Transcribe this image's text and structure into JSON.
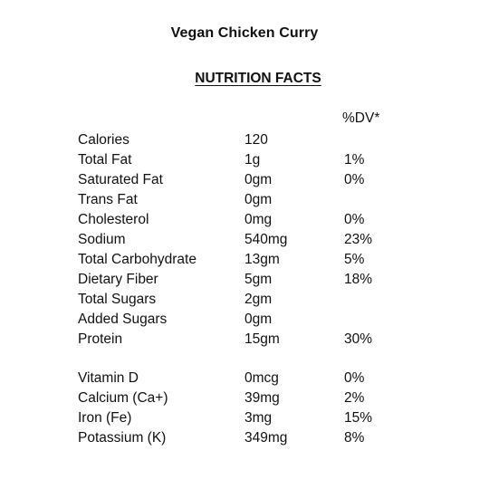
{
  "title": "Vegan Chicken Curry",
  "heading": "NUTRITION FACTS",
  "dv_header": "%DV*",
  "rows": [
    {
      "name": "Calories",
      "amount": "120",
      "dv": ""
    },
    {
      "name": "Total Fat",
      "amount": "1g",
      "dv": "1%"
    },
    {
      "name": "Saturated Fat",
      "amount": "0gm",
      "dv": "0%"
    },
    {
      "name": "Trans Fat",
      "amount": "0gm",
      "dv": ""
    },
    {
      "name": "Cholesterol",
      "amount": "0mg",
      "dv": "0%"
    },
    {
      "name": "Sodium",
      "amount": "540mg",
      "dv": "23%"
    },
    {
      "name": "Total Carbohydrate",
      "amount": "13gm",
      "dv": "5%"
    },
    {
      "name": "Dietary Fiber",
      "amount": "5gm",
      "dv": "18%"
    },
    {
      "name": "Total Sugars",
      "amount": "2gm",
      "dv": ""
    },
    {
      "name": "Added Sugars",
      "amount": "0gm",
      "dv": ""
    },
    {
      "name": "Protein",
      "amount": "15gm",
      "dv": "30%"
    }
  ],
  "minerals": [
    {
      "name": "Vitamin D",
      "amount": "0mcg",
      "dv": "0%"
    },
    {
      "name": "Calcium (Ca+)",
      "amount": "39mg",
      "dv": "2%"
    },
    {
      "name": "Iron (Fe)",
      "amount": "3mg",
      "dv": "15%"
    },
    {
      "name": "Potassium (K)",
      "amount": "349mg",
      "dv": "8%"
    }
  ]
}
